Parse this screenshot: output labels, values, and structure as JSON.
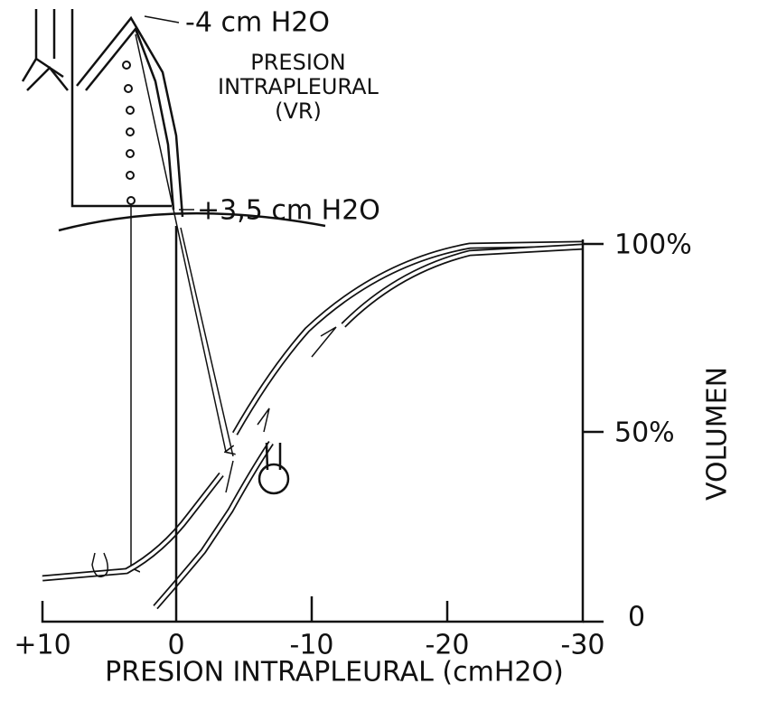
{
  "annotations": {
    "top_pressure": "-4 cm H2O",
    "presion_label": "PRESION",
    "intrapleural_label": "INTRAPLEURAL",
    "vr_label": "(VR)",
    "bottom_pressure": "+3,5 cm H2O"
  },
  "x_axis": {
    "ticks": [
      "+10",
      "0",
      "-10",
      "-20",
      "-30"
    ],
    "label": "PRESION INTRAPLEURAL (cmH2O)"
  },
  "y_axis": {
    "ticks": [
      "0",
      "50%",
      "100%"
    ],
    "label": "VOLUMEN"
  }
}
